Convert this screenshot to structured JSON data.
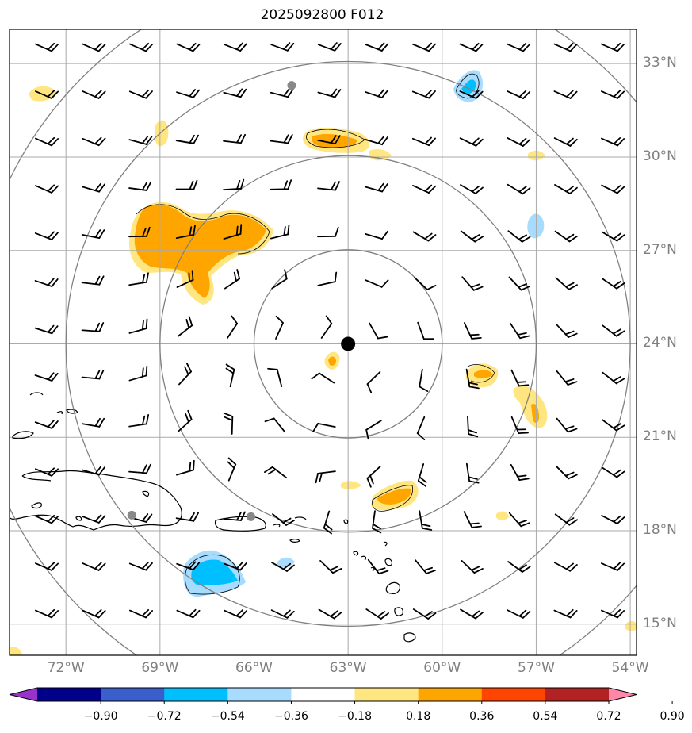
{
  "title": "2025092800 F012",
  "map": {
    "lon_range": [
      -73.8,
      -53.8
    ],
    "lat_range": [
      14.0,
      34.1
    ],
    "center": {
      "lon": -63.0,
      "lat": 24.0
    },
    "ring_radii_deg": [
      3,
      6,
      9,
      12
    ],
    "lat_ticks": [
      {
        "value": 33,
        "label": "33°N"
      },
      {
        "value": 30,
        "label": "30°N"
      },
      {
        "value": 27,
        "label": "27°N"
      },
      {
        "value": 24,
        "label": "24°N"
      },
      {
        "value": 21,
        "label": "21°N"
      },
      {
        "value": 18,
        "label": "18°N"
      },
      {
        "value": 15,
        "label": "15°N"
      }
    ],
    "lon_ticks": [
      {
        "value": -72,
        "label": "72°W"
      },
      {
        "value": -69,
        "label": "69°W"
      },
      {
        "value": -66,
        "label": "66°W"
      },
      {
        "value": -63,
        "label": "63°W"
      },
      {
        "value": -60,
        "label": "60°W"
      },
      {
        "value": -57,
        "label": "57°W"
      },
      {
        "value": -54,
        "label": "54°W"
      }
    ],
    "colors": {
      "grid": "#aaaaaa",
      "rings": "#808080",
      "tick_label": "#7f7f7f",
      "center_marker": "#000000",
      "city_marker": "#888888",
      "light_positive": "#ffe680",
      "positive": "#ffa500",
      "light_negative": "#a8dcff",
      "negative": "#00bfff"
    },
    "markers": [
      {
        "name": "storm-center",
        "lon": -63.0,
        "lat": 24.0
      },
      {
        "name": "city-marker-north",
        "lon": -64.8,
        "lat": 32.3
      },
      {
        "name": "city-marker-hispaniola",
        "lon": -69.9,
        "lat": 18.5
      },
      {
        "name": "city-marker-san-juan",
        "lon": -66.1,
        "lat": 18.45
      }
    ]
  },
  "colorbar": {
    "colors": [
      "#9932cc",
      "#00008b",
      "#3a5fcd",
      "#00bfff",
      "#a8dcff",
      "#ffffff",
      "#ffe680",
      "#ffa500",
      "#ff4500",
      "#b22222",
      "#ff88aa"
    ],
    "tick_labels": [
      "−0.90",
      "−0.72",
      "−0.54",
      "−0.36",
      "−0.18",
      "0.18",
      "0.36",
      "0.54",
      "0.72",
      "0.90"
    ]
  }
}
